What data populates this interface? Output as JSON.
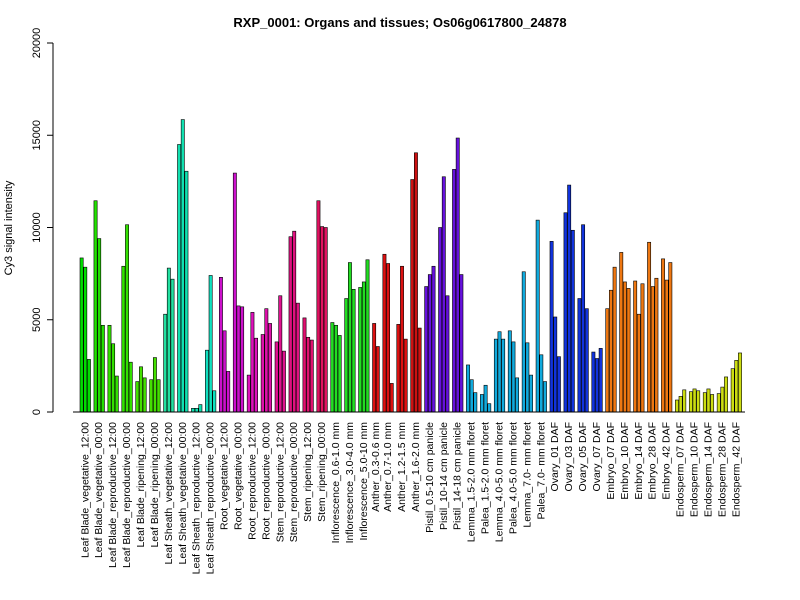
{
  "chart_data": {
    "type": "bar",
    "title": "RXP_0001: Organs and tissues; Os06g0617800_24878",
    "xlabel": "",
    "ylabel": "Cy3 signal intensity",
    "ylim": [
      0,
      20000
    ],
    "yticks": [
      0,
      5000,
      10000,
      15000,
      20000
    ],
    "grid": false,
    "groups": [
      {
        "name": "Leaf Blade_vegetative_12:00",
        "color": "#00dd00",
        "values": [
          8350,
          7850,
          2850
        ]
      },
      {
        "name": "Leaf Blade_vegetative_00:00",
        "color": "#22e000",
        "values": [
          11450,
          9400,
          4700
        ]
      },
      {
        "name": "Leaf Blade_reproductive_12:00",
        "color": "#33e000",
        "values": [
          4700,
          3700,
          1950
        ]
      },
      {
        "name": "Leaf Blade_reproductive_00:00",
        "color": "#33e000",
        "values": [
          7900,
          10150,
          2700
        ]
      },
      {
        "name": "Leaf Blade_ripening_12:00",
        "color": "#44e000",
        "values": [
          1650,
          2450,
          1850
        ]
      },
      {
        "name": "Leaf Blade_ripening_00:00",
        "color": "#44e000",
        "values": [
          1750,
          2950,
          1750
        ]
      },
      {
        "name": "Leaf Sheath_vegetative_12:00",
        "color": "#22e0a0",
        "values": [
          5300,
          7800,
          7200
        ]
      },
      {
        "name": "Leaf Sheath_vegetative_00:00",
        "color": "#11e0b0",
        "values": [
          14500,
          15850,
          13050
        ]
      },
      {
        "name": "Leaf Sheath_reproductive_12:00",
        "color": "#11e0b0",
        "values": [
          200,
          200,
          400
        ]
      },
      {
        "name": "Leaf Sheath_reproductive_00:00",
        "color": "#11e0c0",
        "values": [
          3350,
          7400,
          1150
        ]
      },
      {
        "name": "Root_vegetative_12:00",
        "color": "#cc11cc",
        "values": [
          7300,
          4400,
          2200
        ]
      },
      {
        "name": "Root_vegetative_00:00",
        "color": "#cc11cc",
        "values": [
          12950,
          5750,
          5700
        ]
      },
      {
        "name": "Root_reproductive_12:00",
        "color": "#dd11bb",
        "values": [
          2000,
          5400,
          4000
        ]
      },
      {
        "name": "Root_reproductive_00:00",
        "color": "#dd11aa",
        "values": [
          4200,
          5600,
          4800
        ]
      },
      {
        "name": "Stem_reproductive_12:00",
        "color": "#e01190",
        "values": [
          3800,
          6300,
          3300
        ]
      },
      {
        "name": "Stem_reproductive_00:00",
        "color": "#e01180",
        "values": [
          9500,
          9800,
          5900
        ]
      },
      {
        "name": "Stem_ripening_12:00",
        "color": "#e01170",
        "values": [
          5100,
          4050,
          3900
        ]
      },
      {
        "name": "Stem_ripening_00:00",
        "color": "#e01160",
        "values": [
          11450,
          10050,
          10000
        ]
      },
      {
        "name": "Inflorescence_0.6-1.0 mm",
        "color": "#22dd22",
        "values": [
          4850,
          4700,
          4150
        ]
      },
      {
        "name": "Inflorescence_3.0-4.0 mm",
        "color": "#22dd22",
        "values": [
          6150,
          8100,
          6650
        ]
      },
      {
        "name": "Inflorescence_5.0-10 mm",
        "color": "#22dd22",
        "values": [
          6750,
          7050,
          8250
        ]
      },
      {
        "name": "Anther_0.3-0.6 mm",
        "color": "#dd1111",
        "values": [
          4800,
          3550
        ]
      },
      {
        "name": "Anther_0.7-1.0 mm",
        "color": "#dd1111",
        "values": [
          8550,
          8050,
          1550
        ]
      },
      {
        "name": "Anther_1.2-1.5 mm",
        "color": "#dd1111",
        "values": [
          4750,
          7900,
          3950
        ]
      },
      {
        "name": "Anther_1.6-2.0 mm",
        "color": "#cc1111",
        "values": [
          12600,
          14050,
          4550
        ]
      },
      {
        "name": "Pistil_0.5-10 cm panicle",
        "color": "#6611dd",
        "values": [
          6800,
          7450,
          7900
        ]
      },
      {
        "name": "Pistil_10-14 cm panicle",
        "color": "#6611dd",
        "values": [
          10000,
          12750,
          6300
        ]
      },
      {
        "name": "Pistil_14-18 cm panicle",
        "color": "#6611dd",
        "values": [
          13150,
          14850,
          7450
        ]
      },
      {
        "name": "Lemma_1.5-2.0 mm floret",
        "color": "#11aadd",
        "values": [
          2550,
          1750,
          1050
        ]
      },
      {
        "name": "Palea_1.5-2.0 mm floret",
        "color": "#11aadd",
        "values": [
          950,
          1450,
          450
        ]
      },
      {
        "name": "Lemma_4.0-5.0 mm floret",
        "color": "#11aadd",
        "values": [
          3950,
          4350,
          3950
        ]
      },
      {
        "name": "Palea_4.0-5.0 mm floret",
        "color": "#11aadd",
        "values": [
          4400,
          3800,
          1850
        ]
      },
      {
        "name": "Lemma_7.0- mm floret",
        "color": "#11aadd",
        "values": [
          7600,
          3750,
          2000
        ]
      },
      {
        "name": "Palea_7.0- mm floret",
        "color": "#11aadd",
        "values": [
          10400,
          3100,
          1650
        ]
      },
      {
        "name": "Ovary_01 DAF",
        "color": "#1133dd",
        "values": [
          9250,
          5150,
          3000
        ]
      },
      {
        "name": "Ovary_03 DAF",
        "color": "#1133dd",
        "values": [
          10800,
          12300,
          9850
        ]
      },
      {
        "name": "Ovary_05 DAF",
        "color": "#1133dd",
        "values": [
          6150,
          10150,
          5600
        ]
      },
      {
        "name": "Ovary_07 DAF",
        "color": "#1133dd",
        "values": [
          3250,
          2900,
          3450
        ]
      },
      {
        "name": "Embryo_07 DAF",
        "color": "#ee7711",
        "values": [
          5600,
          6600,
          7850
        ]
      },
      {
        "name": "Embryo_10 DAF",
        "color": "#ee7711",
        "values": [
          8650,
          7050,
          6700
        ]
      },
      {
        "name": "Embryo_14 DAF",
        "color": "#ee7711",
        "values": [
          7100,
          5300,
          6950
        ]
      },
      {
        "name": "Embryo_28 DAF",
        "color": "#ee7711",
        "values": [
          9200,
          6800,
          7250
        ]
      },
      {
        "name": "Embryo_42 DAF",
        "color": "#ee7711",
        "values": [
          8300,
          7150,
          8100
        ]
      },
      {
        "name": "Endosperm_07 DAF",
        "color": "#ccdd11",
        "values": [
          650,
          850,
          1200
        ]
      },
      {
        "name": "Endosperm_10 DAF",
        "color": "#ccdd11",
        "values": [
          1100,
          1250,
          1150
        ]
      },
      {
        "name": "Endosperm_14 DAF",
        "color": "#ccdd11",
        "values": [
          1050,
          1250,
          950
        ]
      },
      {
        "name": "Endosperm_28 DAF",
        "color": "#ccdd11",
        "values": [
          1000,
          1350,
          1900
        ]
      },
      {
        "name": "Endosperm_42 DAF",
        "color": "#ccdd11",
        "values": [
          2350,
          2800,
          3200
        ]
      }
    ]
  }
}
